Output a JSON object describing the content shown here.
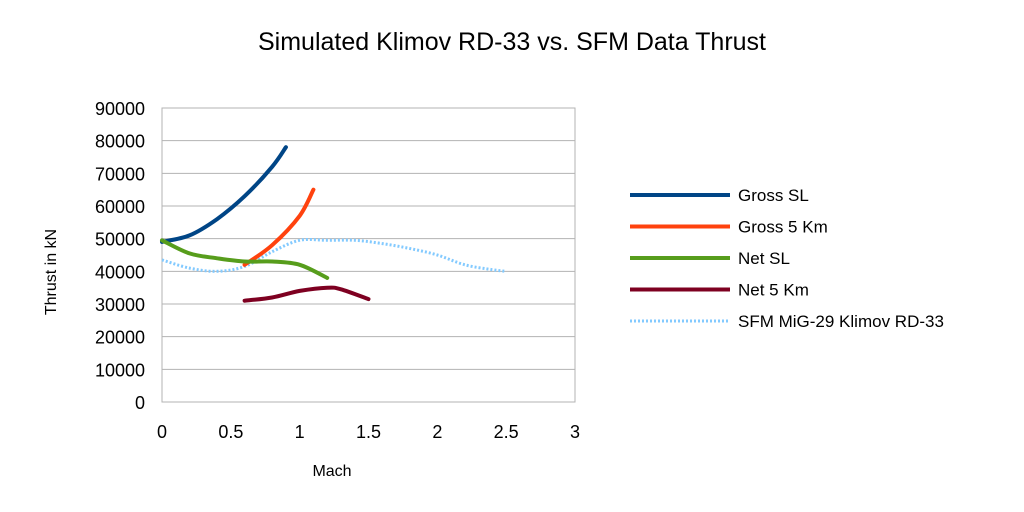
{
  "chart_data": {
    "type": "line",
    "title": "Simulated Klimov RD-33 vs. SFM Data Thrust",
    "xlabel": "Mach",
    "ylabel": "Thrust in kN",
    "xlim": [
      0,
      3
    ],
    "ylim": [
      0,
      90000
    ],
    "x_ticks": [
      "0",
      "0.5",
      "1",
      "1.5",
      "2",
      "2.5",
      "3"
    ],
    "y_ticks": [
      "0",
      "10000",
      "20000",
      "30000",
      "40000",
      "50000",
      "60000",
      "70000",
      "80000",
      "90000"
    ],
    "grid": true,
    "legend_position": "right",
    "series": [
      {
        "name": "Gross SL",
        "color": "#004586",
        "style": "solid",
        "x": [
          0,
          0.2,
          0.4,
          0.6,
          0.8,
          0.9
        ],
        "y": [
          49000,
          51000,
          56000,
          63000,
          72000,
          78000
        ]
      },
      {
        "name": "Gross 5 Km",
        "color": "#ff420e",
        "style": "solid",
        "x": [
          0.6,
          0.8,
          1.0,
          1.1
        ],
        "y": [
          42000,
          48000,
          57000,
          65000
        ]
      },
      {
        "name": "Net SL",
        "color": "#579d1c",
        "style": "solid",
        "x": [
          0,
          0.2,
          0.4,
          0.6,
          0.8,
          1.0,
          1.2
        ],
        "y": [
          49500,
          45500,
          44000,
          43000,
          43000,
          42000,
          38000
        ]
      },
      {
        "name": "Net 5 Km",
        "color": "#7e0021",
        "style": "solid",
        "x": [
          0.6,
          0.8,
          1.0,
          1.2,
          1.3,
          1.5
        ],
        "y": [
          31000,
          32000,
          34000,
          35000,
          34500,
          31500
        ]
      },
      {
        "name": "SFM MiG-29 Klimov RD-33",
        "color": "#83caff",
        "style": "dotted",
        "x": [
          0,
          0.2,
          0.4,
          0.6,
          0.8,
          1.0,
          1.2,
          1.4,
          1.6,
          1.8,
          2.0,
          2.2,
          2.4,
          2.5
        ],
        "y": [
          43500,
          41000,
          40000,
          41500,
          46000,
          49500,
          49500,
          49500,
          48500,
          47000,
          45000,
          42000,
          40500,
          40000
        ]
      }
    ]
  }
}
